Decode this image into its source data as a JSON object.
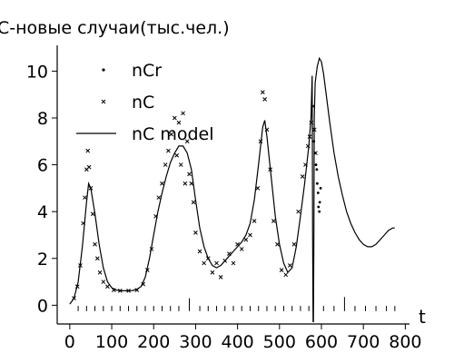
{
  "chart_data": {
    "type": "line",
    "title": "С-новые случаи(тыс.чел.)",
    "xlabel": "t",
    "ylabel": "",
    "xlim": [
      -30,
      810
    ],
    "ylim": [
      -0.8,
      11.1
    ],
    "grid": false,
    "legend_position": "top-left",
    "x_ticks": [
      0,
      100,
      200,
      300,
      400,
      500,
      600,
      700,
      800
    ],
    "y_ticks": [
      0,
      2,
      4,
      6,
      8,
      10
    ],
    "legend": [
      {
        "label": "nCr",
        "marker": "dot"
      },
      {
        "label": "nC",
        "marker": "x"
      },
      {
        "label": "nC model",
        "marker": "line"
      }
    ],
    "series": [
      {
        "name": "nC model",
        "style": "line",
        "x": [
          0,
          10,
          20,
          30,
          40,
          45,
          50,
          60,
          70,
          80,
          90,
          100,
          110,
          120,
          130,
          140,
          150,
          160,
          170,
          180,
          190,
          200,
          210,
          220,
          230,
          240,
          250,
          260,
          270,
          280,
          290,
          300,
          310,
          320,
          330,
          340,
          350,
          360,
          370,
          380,
          390,
          400,
          410,
          420,
          430,
          440,
          450,
          460,
          465,
          470,
          480,
          490,
          500,
          510,
          520,
          530,
          540,
          550,
          560,
          570,
          575,
          578,
          579,
          580,
          581,
          582,
          583,
          585,
          590,
          595,
          600,
          605,
          610,
          620,
          630,
          640,
          650,
          660,
          670,
          680,
          690,
          700,
          710,
          720,
          730,
          740,
          750,
          760,
          770,
          775
        ],
        "y": [
          0.05,
          0.3,
          1.0,
          2.5,
          4.4,
          5.2,
          5.0,
          3.9,
          2.6,
          1.6,
          1.0,
          0.75,
          0.65,
          0.62,
          0.62,
          0.62,
          0.63,
          0.68,
          0.8,
          1.2,
          2.0,
          3.0,
          4.0,
          4.8,
          5.5,
          6.1,
          6.5,
          6.8,
          6.8,
          6.5,
          5.8,
          4.5,
          3.3,
          2.5,
          2.0,
          1.7,
          1.6,
          1.7,
          1.9,
          2.1,
          2.3,
          2.5,
          2.7,
          3.0,
          3.5,
          4.5,
          6.0,
          7.6,
          7.9,
          7.2,
          5.5,
          3.8,
          2.6,
          1.8,
          1.4,
          1.6,
          2.5,
          3.8,
          5.2,
          6.8,
          8.0,
          9.8,
          3.0,
          -0.7,
          -0.7,
          3.0,
          8.0,
          9.5,
          10.2,
          10.55,
          10.4,
          9.9,
          9.2,
          7.8,
          6.5,
          5.5,
          4.7,
          4.0,
          3.5,
          3.1,
          2.8,
          2.6,
          2.5,
          2.5,
          2.6,
          2.8,
          3.0,
          3.2,
          3.3,
          3.3
        ]
      },
      {
        "name": "nC",
        "style": "x-marker",
        "x": [
          10,
          18,
          25,
          32,
          36,
          40,
          43,
          46,
          50,
          55,
          60,
          66,
          72,
          80,
          90,
          105,
          120,
          140,
          160,
          175,
          185,
          195,
          205,
          212,
          220,
          228,
          235,
          242,
          250,
          255,
          260,
          265,
          270,
          275,
          280,
          285,
          290,
          295,
          300,
          310,
          320,
          330,
          340,
          350,
          360,
          370,
          380,
          390,
          400,
          410,
          420,
          430,
          440,
          448,
          455,
          460,
          465,
          470,
          478,
          486,
          495,
          505,
          515,
          525,
          535,
          545,
          555,
          562,
          568,
          572,
          576,
          580,
          583,
          586
        ],
        "y": [
          0.3,
          0.8,
          1.7,
          3.5,
          4.6,
          5.8,
          6.6,
          5.9,
          5.0,
          3.9,
          2.6,
          2.0,
          1.4,
          1.0,
          0.8,
          0.65,
          0.62,
          0.62,
          0.65,
          0.9,
          1.5,
          2.4,
          3.8,
          4.6,
          5.2,
          6.0,
          6.6,
          7.3,
          8.0,
          6.4,
          7.8,
          6.0,
          8.2,
          5.2,
          7.0,
          5.6,
          5.2,
          4.4,
          3.1,
          2.3,
          1.8,
          2.0,
          1.4,
          1.8,
          1.2,
          1.9,
          2.2,
          1.8,
          2.6,
          2.4,
          2.8,
          3.0,
          3.6,
          5.0,
          7.0,
          9.1,
          8.8,
          7.5,
          5.8,
          3.6,
          2.6,
          1.5,
          1.3,
          1.7,
          2.6,
          4.0,
          5.5,
          6.0,
          6.8,
          7.2,
          7.8,
          8.5,
          7.5,
          6.5
        ]
      },
      {
        "name": "nCr",
        "style": "dot-marker",
        "x": [
          582,
          585,
          587,
          589,
          590,
          592,
          593,
          595,
          596,
          598
        ],
        "y": [
          7.0,
          6.5,
          6.0,
          5.8,
          5.2,
          4.8,
          4.2,
          4.0,
          4.4,
          5.0
        ]
      }
    ],
    "event_lines": {
      "baseline_y": -0.25,
      "x": [
        20,
        40,
        60,
        80,
        100,
        120,
        140,
        160,
        180,
        200,
        220,
        240,
        260,
        285,
        310,
        330,
        350,
        370,
        390,
        410,
        430,
        450,
        470,
        490,
        510,
        530,
        550,
        570,
        605,
        630,
        655,
        680,
        705,
        730,
        755,
        775
      ],
      "heights": [
        0.22,
        0.22,
        0.22,
        0.22,
        0.22,
        0.22,
        0.22,
        0.22,
        0.22,
        0.22,
        0.22,
        0.22,
        0.22,
        0.55,
        0.22,
        0.22,
        0.22,
        0.22,
        0.22,
        0.22,
        0.22,
        0.22,
        0.22,
        0.22,
        0.22,
        0.22,
        0.22,
        0.22,
        0.22,
        0.22,
        0.6,
        0.22,
        0.22,
        0.22,
        0.22,
        0.22
      ]
    }
  }
}
